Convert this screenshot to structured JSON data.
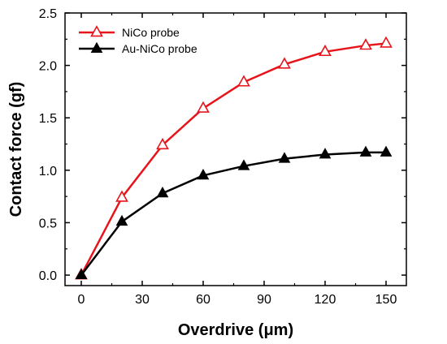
{
  "chart_data": {
    "type": "line",
    "xlabel": "Overdrive (μm)",
    "ylabel": "Contact force (gf)",
    "xlim": [
      -8,
      160
    ],
    "ylim": [
      -0.1,
      2.5
    ],
    "xticks": [
      0,
      30,
      60,
      90,
      120,
      150
    ],
    "yticks": [
      0.0,
      0.5,
      1.0,
      1.5,
      2.0,
      2.5
    ],
    "ytick_labels": [
      "0.0",
      "0.5",
      "1.0",
      "1.5",
      "2.0",
      "2.5"
    ],
    "grid": false,
    "legend_position": "top-left",
    "series": [
      {
        "name": "NiCo probe",
        "color": "#e8141b",
        "marker": "open-triangle",
        "x": [
          0,
          20,
          40,
          60,
          80,
          100,
          120,
          140,
          150
        ],
        "y": [
          0.0,
          0.74,
          1.24,
          1.59,
          1.84,
          2.01,
          2.13,
          2.19,
          2.21
        ]
      },
      {
        "name": "Au-NiCo probe",
        "color": "#000000",
        "marker": "filled-triangle",
        "x": [
          0,
          20,
          40,
          60,
          80,
          100,
          120,
          140,
          150
        ],
        "y": [
          0.0,
          0.51,
          0.78,
          0.95,
          1.04,
          1.11,
          1.15,
          1.17,
          1.17
        ]
      }
    ]
  }
}
